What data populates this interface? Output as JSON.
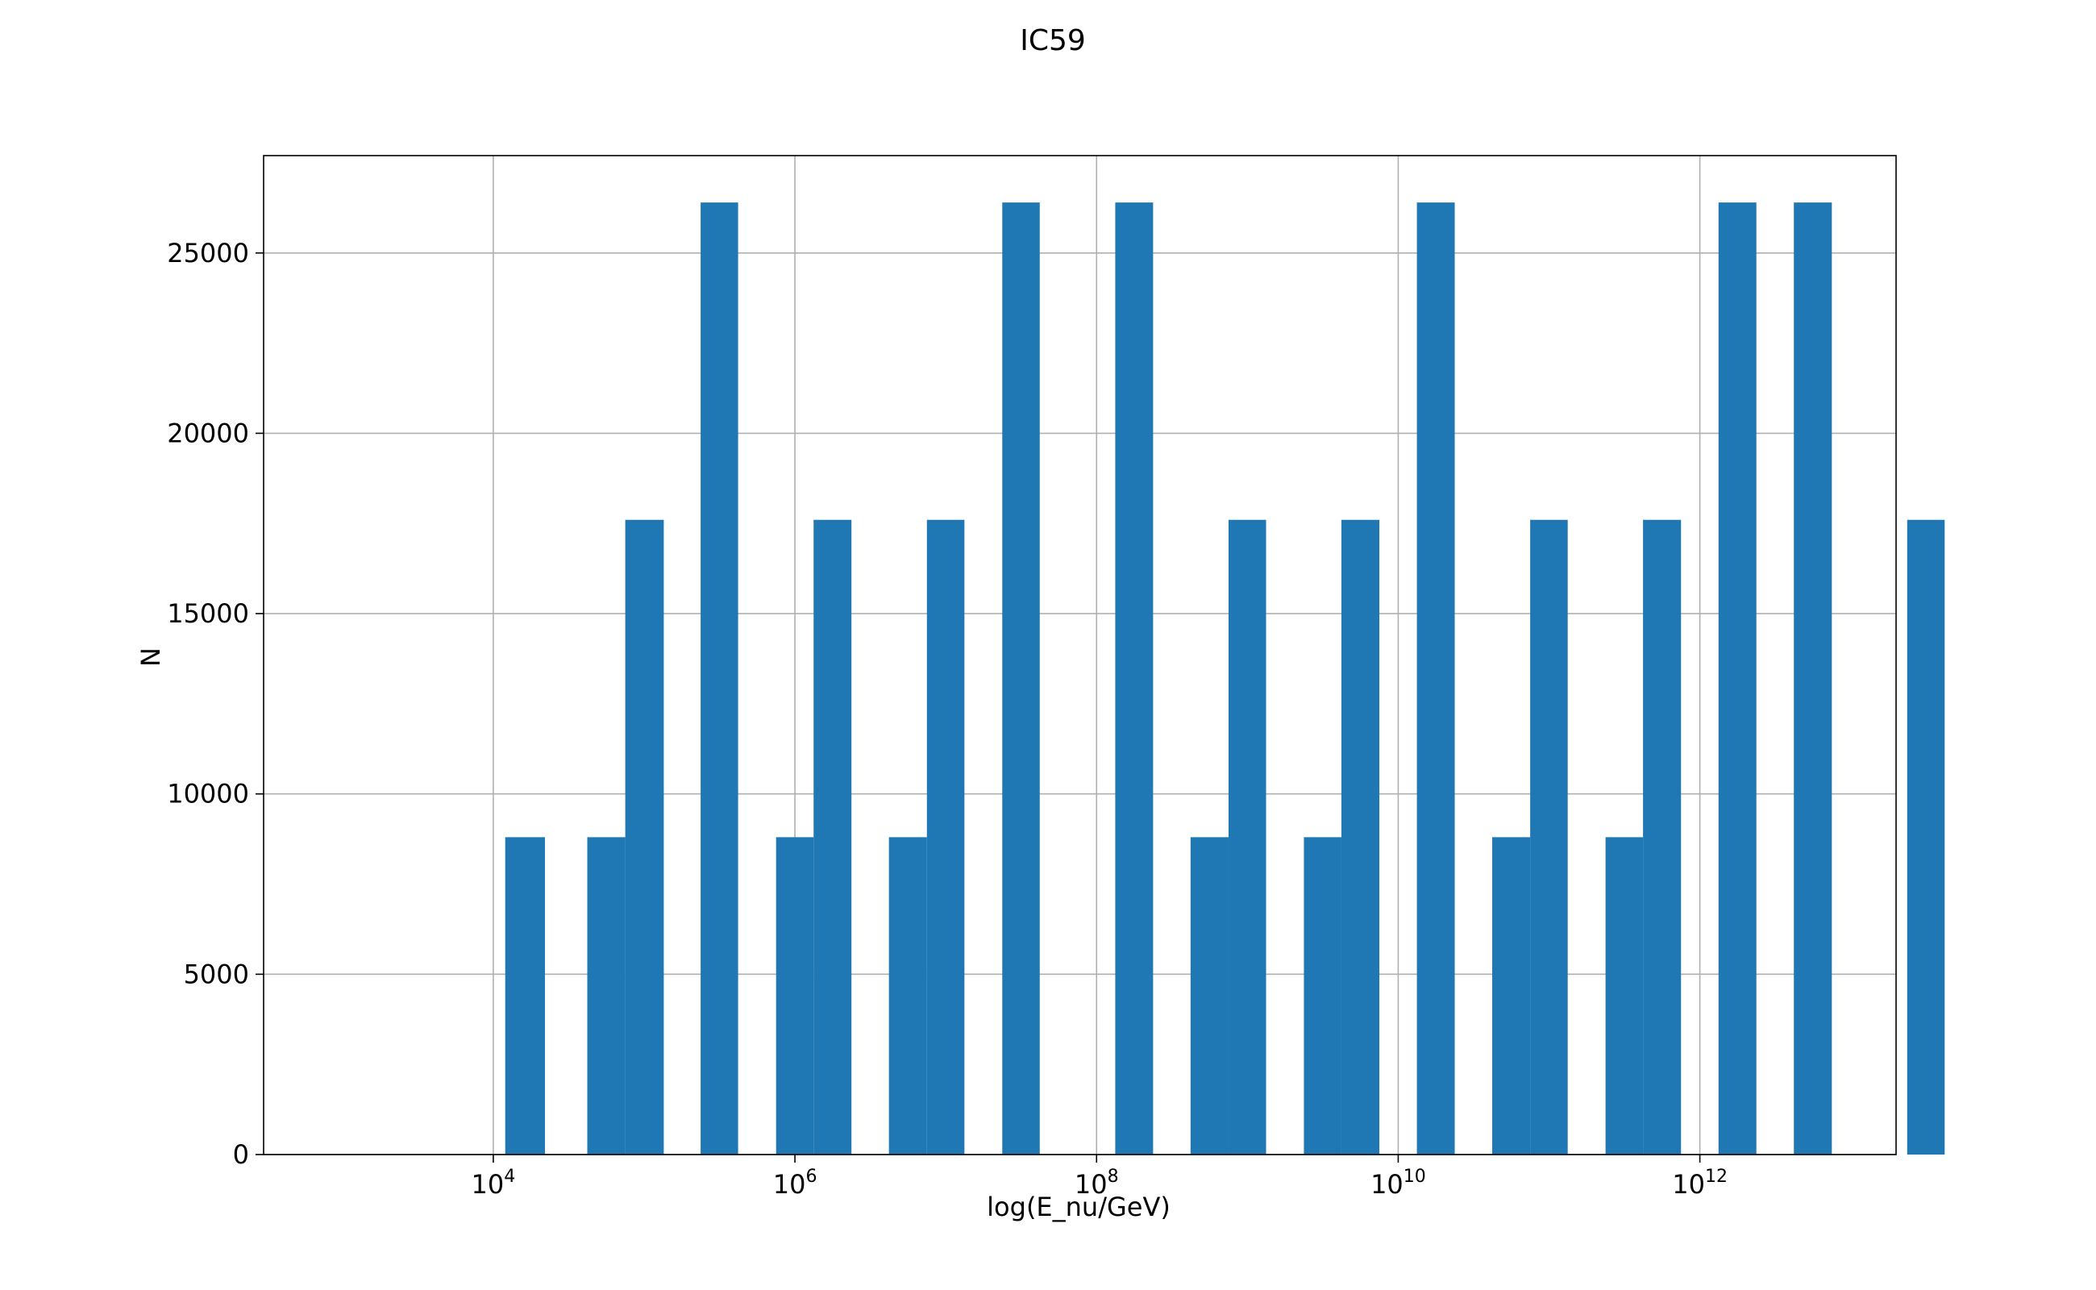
{
  "chart_data": {
    "type": "bar",
    "title": "IC59",
    "xlabel": "log(E_nu/GeV)",
    "ylabel": "N",
    "x_scale": "log",
    "xlim": [
      300,
      20000000000000
    ],
    "ylim": [
      0,
      27700
    ],
    "grid": true,
    "bar_color": "#1f77b4",
    "x_ticks": [
      {
        "base": "10",
        "exp": "4",
        "value": 10000
      },
      {
        "base": "10",
        "exp": "6",
        "value": 1000000
      },
      {
        "base": "10",
        "exp": "8",
        "value": 100000000
      },
      {
        "base": "10",
        "exp": "10",
        "value": 10000000000
      },
      {
        "base": "10",
        "exp": "12",
        "value": 1000000000000
      }
    ],
    "y_ticks": [
      {
        "label": "0",
        "value": 0
      },
      {
        "label": "5000",
        "value": 5000
      },
      {
        "label": "10000",
        "value": 10000
      },
      {
        "label": "15000",
        "value": 15000
      },
      {
        "label": "20000",
        "value": 20000
      },
      {
        "label": "25000",
        "value": 25000
      }
    ],
    "bins": [
      {
        "x0": 12000,
        "x1": 22000,
        "value": 8800
      },
      {
        "x0": 42000,
        "x1": 75000,
        "value": 8800
      },
      {
        "x0": 75000,
        "x1": 135000,
        "value": 17600
      },
      {
        "x0": 237000,
        "x1": 420000,
        "value": 26400
      },
      {
        "x0": 750000,
        "x1": 1330000,
        "value": 8800
      },
      {
        "x0": 1330000,
        "x1": 2370000,
        "value": 17600
      },
      {
        "x0": 4200000,
        "x1": 7500000,
        "value": 8800
      },
      {
        "x0": 7500000,
        "x1": 13300000,
        "value": 17600
      },
      {
        "x0": 23700000,
        "x1": 42000000,
        "value": 26400
      },
      {
        "x0": 133000000,
        "x1": 237000000,
        "value": 26400
      },
      {
        "x0": 420000000,
        "x1": 750000000,
        "value": 8800
      },
      {
        "x0": 750000000,
        "x1": 1330000000,
        "value": 17600
      },
      {
        "x0": 2370000000,
        "x1": 4200000000,
        "value": 8800
      },
      {
        "x0": 4200000000,
        "x1": 7500000000,
        "value": 17600
      },
      {
        "x0": 13300000000,
        "x1": 23700000000,
        "value": 26400
      },
      {
        "x0": 42000000000,
        "x1": 75000000000,
        "value": 8800
      },
      {
        "x0": 75000000000,
        "x1": 133000000000,
        "value": 17600
      },
      {
        "x0": 237000000000,
        "x1": 420000000000,
        "value": 8800
      },
      {
        "x0": 420000000000,
        "x1": 750000000000,
        "value": 17600
      },
      {
        "x0": 1330000000000,
        "x1": 2370000000000,
        "value": 26400
      },
      {
        "x0": 4200000000000,
        "x1": 7500000000000,
        "value": 26400
      },
      {
        "x0": 23700000000000,
        "x1": 42000000000000,
        "value": 17600
      }
    ]
  }
}
